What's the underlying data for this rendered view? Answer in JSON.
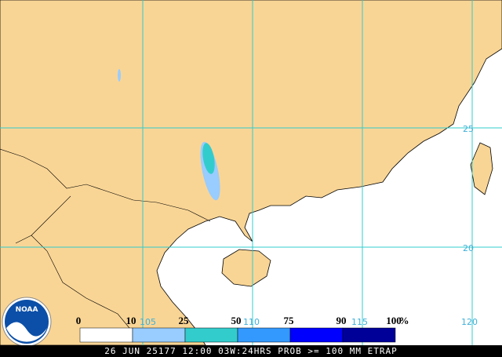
{
  "logo": "NOAA",
  "grid": {
    "lon_labels": [
      "105",
      "110",
      "115",
      "120"
    ],
    "lat_labels": [
      "25",
      "20"
    ]
  },
  "legend": {
    "labels": [
      "0",
      "10",
      "25",
      "50",
      "75",
      "90",
      "100"
    ],
    "unit": "%"
  },
  "footer": "26 JUN 25177 12:00 03W:24HRS PROB >= 100 MM ETRAP"
}
